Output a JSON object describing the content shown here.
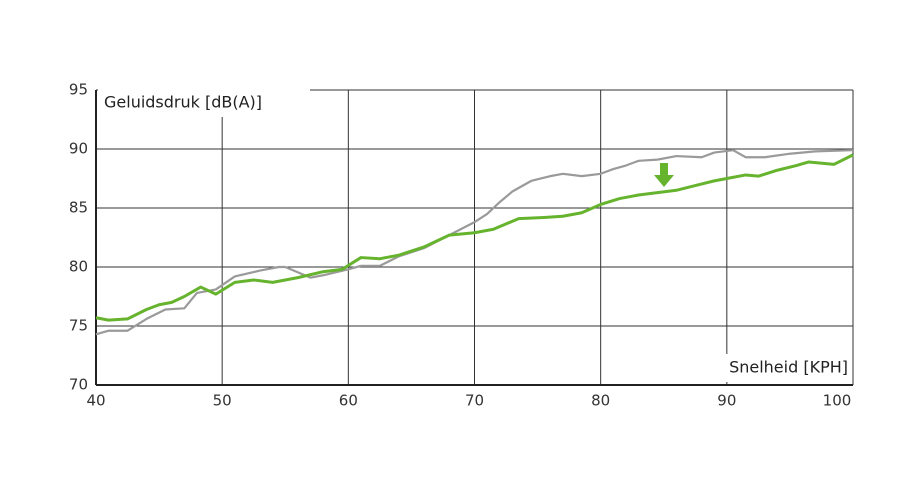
{
  "chart_data": {
    "type": "line",
    "xlabel": "Snelheid [KPH]",
    "ylabel": "Geluidsdruk [dB(A)]",
    "xlim": [
      40,
      100
    ],
    "xticks": [
      40,
      50,
      60,
      70,
      80,
      90,
      100
    ],
    "ylim": [
      70,
      95
    ],
    "yticks": [
      70,
      75,
      80,
      85,
      90,
      95
    ],
    "grid": true,
    "series": [
      {
        "color": "#9a9a9a",
        "x": [
          40,
          41,
          42.5,
          44,
          45.5,
          47,
          48,
          49.5,
          51,
          53,
          54.5,
          55,
          57,
          58,
          60,
          61,
          62.5,
          64,
          66,
          68,
          70,
          71,
          72,
          73,
          74.5,
          76,
          77,
          78.5,
          80,
          81,
          82,
          83,
          84.5,
          86,
          88,
          89,
          90.5,
          91.5,
          93,
          95,
          97,
          100
        ],
        "values": [
          74.3,
          74.6,
          74.6,
          75.6,
          76.4,
          76.5,
          77.8,
          78.1,
          79.2,
          79.7,
          80.0,
          80.0,
          79.1,
          79.3,
          79.8,
          80.1,
          80.1,
          80.9,
          81.6,
          82.7,
          83.8,
          84.5,
          85.5,
          86.4,
          87.3,
          87.7,
          87.9,
          87.7,
          87.9,
          88.3,
          88.6,
          89.0,
          89.1,
          89.4,
          89.3,
          89.7,
          89.9,
          89.3,
          89.3,
          89.6,
          89.8,
          89.9
        ]
      },
      {
        "color": "#66b32e",
        "x": [
          40,
          41,
          42.5,
          44,
          45,
          46,
          47,
          48.3,
          49.5,
          51,
          52.5,
          54,
          56,
          58,
          59.5,
          61,
          62.5,
          64,
          66,
          68,
          70,
          71.5,
          73.5,
          75.5,
          77,
          78.5,
          80,
          81.5,
          83,
          84.5,
          86,
          87.5,
          89,
          90,
          91.5,
          92.5,
          94,
          95.5,
          96.5,
          98.5,
          100
        ],
        "values": [
          75.7,
          75.5,
          75.6,
          76.4,
          76.8,
          77.0,
          77.5,
          78.3,
          77.7,
          78.7,
          78.9,
          78.7,
          79.1,
          79.6,
          79.8,
          80.8,
          80.7,
          81.0,
          81.7,
          82.7,
          82.9,
          83.2,
          84.1,
          84.2,
          84.3,
          84.6,
          85.3,
          85.8,
          86.1,
          86.3,
          86.5,
          86.9,
          87.3,
          87.5,
          87.8,
          87.7,
          88.2,
          88.6,
          88.9,
          88.7,
          89.5
        ]
      }
    ]
  }
}
